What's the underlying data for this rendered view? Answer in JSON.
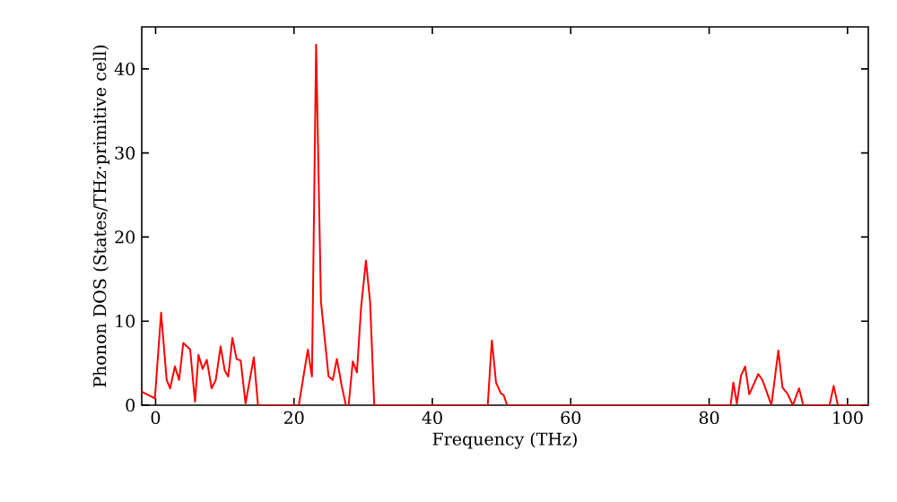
{
  "chart_data": {
    "type": "line",
    "xlabel": "Frequency (THz)",
    "ylabel": "Phonon DOS (States/THz·primitive cell)",
    "xlim": [
      -2,
      103
    ],
    "ylim": [
      0,
      45
    ],
    "xticks": [
      0,
      20,
      40,
      60,
      80,
      100
    ],
    "yticks": [
      0,
      10,
      20,
      30,
      40
    ],
    "grid": false,
    "series": [
      {
        "color": "#ff0000",
        "x": [
          -2,
          -0.1,
          0.8,
          1.6,
          2.1,
          2.8,
          3.4,
          4,
          5,
          5.7,
          6.2,
          6.8,
          7.4,
          8.1,
          8.7,
          9.4,
          10,
          10.5,
          11.1,
          11.7,
          12.3,
          13,
          14.2,
          14.8,
          20.7,
          22,
          22.6,
          23.2,
          23.9,
          25,
          25.6,
          26.2,
          26.9,
          27.5,
          27.9,
          28.5,
          29.1,
          29.7,
          30.4,
          31,
          31.6,
          48,
          48.6,
          49.2,
          49.9,
          50.3,
          50.8,
          83.1,
          83.5,
          84,
          84.6,
          85.2,
          85.8,
          86.5,
          87.1,
          87.7,
          88.4,
          89,
          90,
          90.6,
          91.3,
          92.1,
          93,
          93.6,
          97.4,
          98,
          98.6,
          103
        ],
        "values": [
          1.6,
          0.8,
          11,
          3,
          2,
          4.6,
          3,
          7.4,
          6.6,
          0.4,
          6,
          4.3,
          5.4,
          2,
          3,
          7,
          4.1,
          3.4,
          8,
          5.5,
          5.3,
          0.2,
          5.7,
          0,
          0,
          6.6,
          3.4,
          42.9,
          12.3,
          3.4,
          3,
          5.5,
          2.3,
          0,
          0,
          5.2,
          3.9,
          11.6,
          17.2,
          12.3,
          0,
          0,
          7.7,
          2.7,
          1.4,
          1.2,
          0,
          0,
          2.7,
          0.2,
          3.5,
          4.6,
          1.3,
          2.6,
          3.7,
          3,
          1.4,
          0,
          6.5,
          2.1,
          1.4,
          0,
          2,
          0,
          0,
          2.3,
          0,
          0
        ]
      }
    ]
  }
}
